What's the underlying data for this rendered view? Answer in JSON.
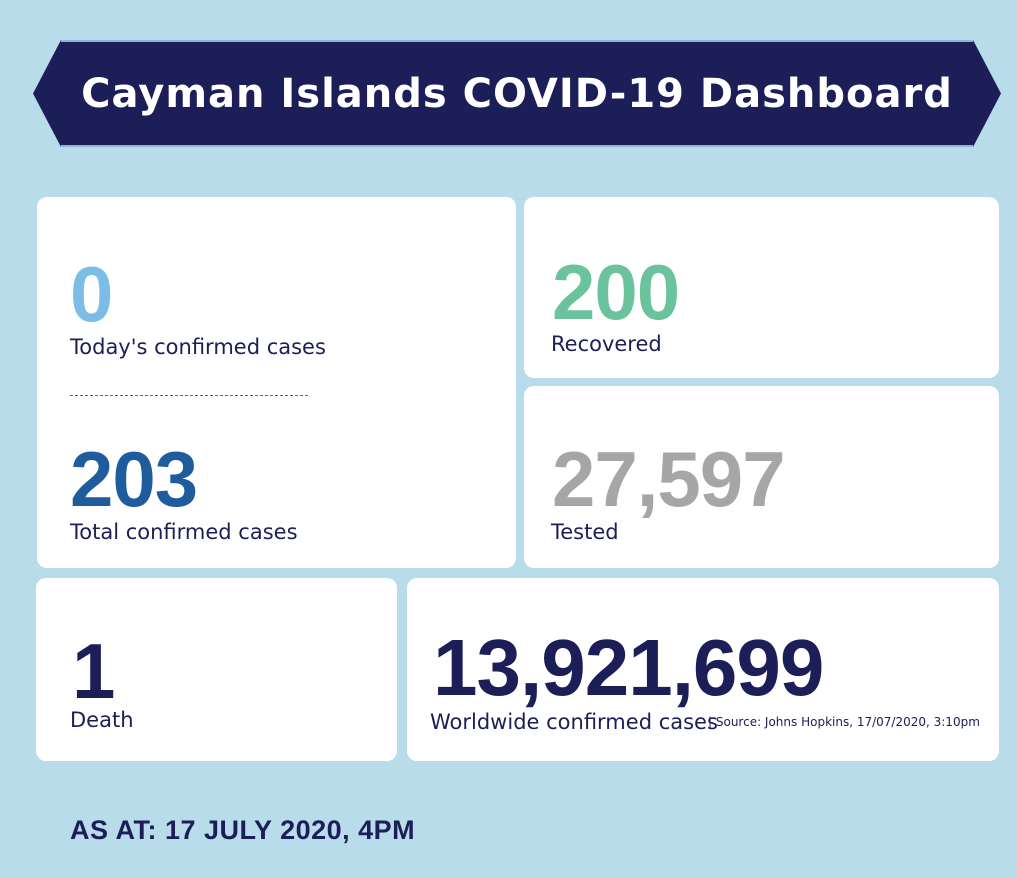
{
  "header": {
    "title": "Cayman Islands COVID-19 Dashboard"
  },
  "stats": {
    "today_cases": {
      "value": "0",
      "label": "Today's confirmed cases",
      "color": "#7bbde6"
    },
    "total_cases": {
      "value": "203",
      "label": "Total confirmed cases",
      "color": "#1e5c9e"
    },
    "recovered": {
      "value": "200",
      "label": "Recovered",
      "color": "#6ac39c"
    },
    "tested": {
      "value": "27,597",
      "label": "Tested",
      "color": "#a6a6a6"
    },
    "death": {
      "value": "1",
      "label": "Death",
      "color": "#1c1e57"
    },
    "worldwide": {
      "value": "13,921,699",
      "label": "Worldwide confirmed cases",
      "source": "| Source: Johns Hopkins, 17/07/2020, 3:10pm",
      "color": "#1c1e57"
    }
  },
  "footer": {
    "as_at": "AS AT: 17 JULY 2020, 4PM"
  },
  "colors": {
    "background": "#b8dcea",
    "banner": "#1c1e57",
    "card": "#ffffff"
  }
}
